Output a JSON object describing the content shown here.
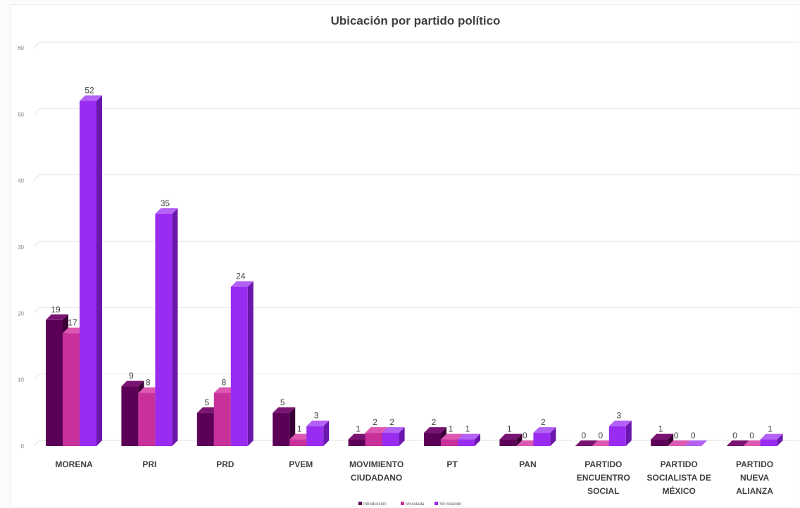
{
  "chart_data": {
    "type": "bar",
    "title": "Ubicación por partido político",
    "xlabel": "",
    "ylabel": "",
    "ylim": [
      0,
      60
    ],
    "yticks": [
      0,
      10,
      20,
      30,
      40,
      50,
      60
    ],
    "grid": true,
    "legend_position": "bottom",
    "categories": [
      [
        "MORENA"
      ],
      [
        "PRI"
      ],
      [
        "PRD"
      ],
      [
        "PVEM"
      ],
      [
        "MOVIMIENTO",
        "CIUDADANO"
      ],
      [
        "PT"
      ],
      [
        "PAN"
      ],
      [
        "PARTIDO",
        "ENCUENTRO",
        "SOCIAL"
      ],
      [
        "PARTIDO",
        "SOCIALISTA DE",
        "MÉXICO"
      ],
      [
        "PARTIDO",
        "NUEVA",
        "ALIANZA"
      ]
    ],
    "series": [
      {
        "name": "Introducción",
        "color": "#5c0057",
        "side_color": "#3a0036",
        "top_color": "#7a1473",
        "values": [
          19,
          9,
          5,
          5,
          1,
          2,
          1,
          0,
          1,
          0
        ]
      },
      {
        "name": "Vinculada",
        "color": "#c8319a",
        "side_color": "#8f1f6e",
        "top_color": "#dd58b2",
        "values": [
          17,
          8,
          8,
          1,
          2,
          1,
          0,
          0,
          0,
          0
        ]
      },
      {
        "name": "Sin relación",
        "color": "#9a2bf0",
        "side_color": "#6a17ad",
        "top_color": "#b461f6",
        "values": [
          52,
          35,
          24,
          3,
          2,
          1,
          2,
          3,
          0,
          1
        ]
      }
    ]
  }
}
